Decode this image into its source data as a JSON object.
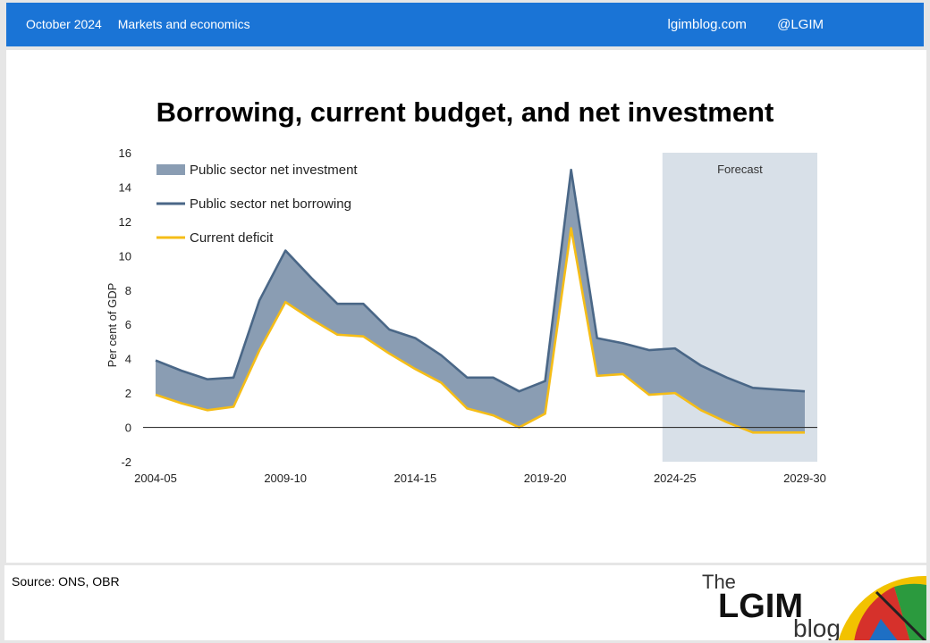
{
  "header": {
    "date": "October 2024",
    "section": "Markets and economics",
    "site": "lgimblog.com",
    "handle": "@LGIM"
  },
  "footer": {
    "source": "Source: ONS, OBR",
    "logo_the": "The",
    "logo_lgim": "LGIM",
    "logo_blog": "blog"
  },
  "colors": {
    "header_bg": "#1a74d6",
    "investment_fill": "#8a9db3",
    "borrowing_line": "#4a6787",
    "deficit_line": "#f5bd17",
    "forecast_bg": "#d8e0e8"
  },
  "chart_data": {
    "type": "area",
    "title": "Borrowing, current budget, and net investment",
    "ylabel": "Per cent of GDP",
    "xlabel": "",
    "ylim": [
      -2,
      16
    ],
    "yticks": [
      -2,
      0,
      2,
      4,
      6,
      8,
      10,
      12,
      14,
      16
    ],
    "xtick_labels": [
      "2004-05",
      "2009-10",
      "2014-15",
      "2019-20",
      "2024-25",
      "2029-30"
    ],
    "x": [
      "2004-05",
      "2005-06",
      "2006-07",
      "2007-08",
      "2008-09",
      "2009-10",
      "2010-11",
      "2011-12",
      "2012-13",
      "2013-14",
      "2014-15",
      "2015-16",
      "2016-17",
      "2017-18",
      "2018-19",
      "2019-20",
      "2020-21",
      "2021-22",
      "2022-23",
      "2023-24",
      "2024-25",
      "2025-26",
      "2026-27",
      "2027-28",
      "2028-29",
      "2029-30"
    ],
    "series": [
      {
        "name": "Public sector net borrowing",
        "values": [
          3.9,
          3.3,
          2.8,
          2.9,
          7.4,
          10.3,
          8.7,
          7.2,
          7.2,
          5.7,
          5.2,
          4.2,
          2.9,
          2.9,
          2.1,
          2.7,
          15.0,
          5.2,
          4.9,
          4.5,
          4.6,
          3.6,
          2.9,
          2.3,
          2.2,
          2.1
        ]
      },
      {
        "name": "Current deficit",
        "values": [
          1.9,
          1.4,
          1.0,
          1.2,
          4.5,
          7.3,
          6.3,
          5.4,
          5.3,
          4.3,
          3.4,
          2.6,
          1.1,
          0.7,
          0.0,
          0.8,
          11.6,
          3.0,
          3.1,
          1.9,
          2.0,
          1.0,
          0.3,
          -0.3,
          -0.3,
          -0.3
        ]
      }
    ],
    "area": {
      "name": "Public sector net investment",
      "between": [
        "Current deficit",
        "Public sector net borrowing"
      ]
    },
    "forecast": {
      "label": "Forecast",
      "from": "2024-25",
      "to": "2029-30"
    },
    "legend": "top-left",
    "grid": false
  }
}
